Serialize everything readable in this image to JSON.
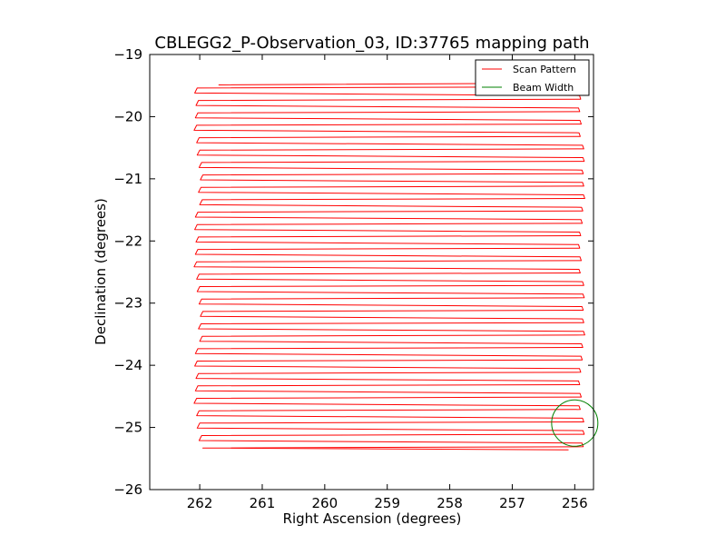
{
  "chart_data": {
    "type": "line",
    "title": "CBLEGG2_P-Observation_03, ID:37765 mapping path",
    "xlabel": "Right Ascension (degrees)",
    "ylabel": "Declination (degrees)",
    "xlim": [
      262.8,
      255.7
    ],
    "ylim": [
      -26,
      -19
    ],
    "x_inverted": true,
    "xticks": [
      262,
      261,
      260,
      259,
      258,
      257,
      256
    ],
    "yticks": [
      -19,
      -20,
      -21,
      -22,
      -23,
      -24,
      -25,
      -26
    ],
    "xtick_labels": [
      "262",
      "261",
      "260",
      "259",
      "258",
      "257",
      "256"
    ],
    "ytick_labels": [
      "−19",
      "−20",
      "−21",
      "−22",
      "−23",
      "−24",
      "−25",
      "−26"
    ],
    "legend_position": "upper-right",
    "series": [
      {
        "name": "Scan Pattern",
        "color": "#ff0000",
        "pattern": "boustrophedon raster",
        "ra_range": [
          262.0,
          255.9
        ],
        "dec_start": -19.47,
        "dec_end": -25.36,
        "row_count": 60
      },
      {
        "name": "Beam Width",
        "color": "#008000",
        "shape": "circle",
        "center_ra": 256.0,
        "center_dec": -24.93,
        "radius_deg": 0.37
      }
    ]
  }
}
